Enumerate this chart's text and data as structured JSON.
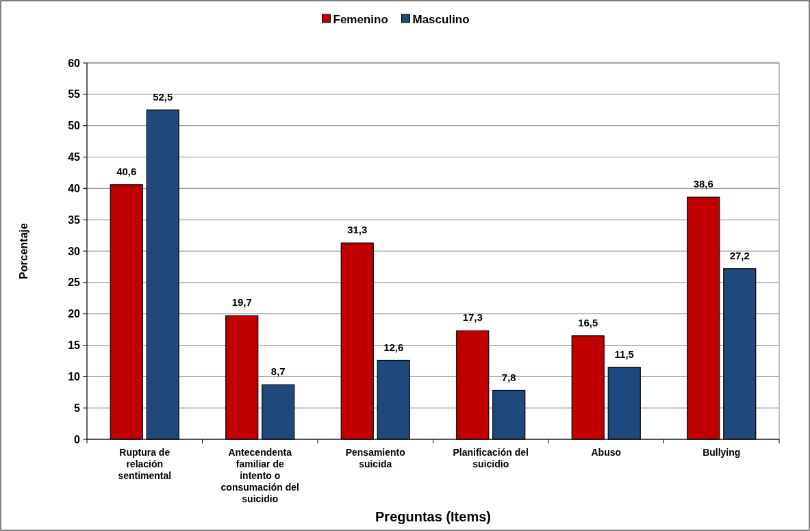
{
  "chart_data": {
    "type": "bar",
    "xlabel": "Preguntas (Items)",
    "ylabel": "Porcentaje",
    "categories": [
      "Ruptura de relación sentimental",
      "Antecendenta familiar de intento o consumación del suicidio",
      "Pensamiento suicida",
      "Planificación del suicidio",
      "Abuso",
      "Bullying"
    ],
    "series": [
      {
        "name": "Femenino",
        "color": "#c00000",
        "values": [
          40.6,
          19.7,
          31.3,
          17.3,
          16.5,
          38.6
        ],
        "value_labels": [
          "40,6",
          "19,7",
          "31,3",
          "17,3",
          "16,5",
          "38,6"
        ]
      },
      {
        "name": "Masculino",
        "color": "#1f497d",
        "values": [
          52.5,
          8.7,
          12.6,
          7.8,
          11.5,
          27.2
        ],
        "value_labels": [
          "52,5",
          "8,7",
          "12,6",
          "7,8",
          "11,5",
          "27,2"
        ]
      }
    ],
    "ylim": [
      0,
      60
    ],
    "yticks": [
      0,
      5,
      10,
      15,
      20,
      25,
      30,
      35,
      40,
      45,
      50,
      55,
      60
    ],
    "grid": "y",
    "legend": "top"
  }
}
